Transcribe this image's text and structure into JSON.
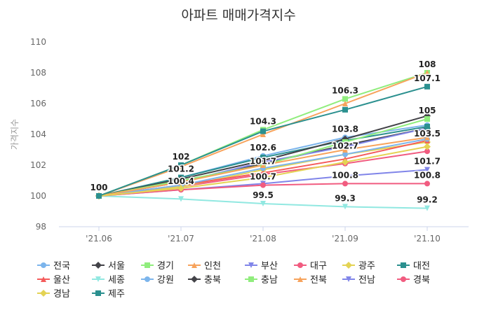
{
  "chart_data": {
    "type": "line",
    "title": "아파트 매매가격지수",
    "xlabel": "",
    "ylabel": "가격지수",
    "x": [
      "'21.06",
      "'21.07",
      "'21.08",
      "'21.09",
      "'21.10"
    ],
    "yticks": [
      "98",
      "100",
      "102",
      "104",
      "106",
      "108",
      "110"
    ],
    "ylim": [
      98,
      110
    ],
    "grid": false,
    "legend_position": "bottom",
    "series": [
      {
        "name": "전국",
        "color": "#7cb5ec",
        "marker": "circle",
        "values": [
          100,
          101.2,
          102.6,
          103.8,
          104.6
        ]
      },
      {
        "name": "서울",
        "color": "#434348",
        "marker": "diamond",
        "values": [
          100,
          100.9,
          102.1,
          103.3,
          104.4
        ]
      },
      {
        "name": "경기",
        "color": "#90ed7d",
        "marker": "square",
        "values": [
          100,
          102,
          104.3,
          106.3,
          108
        ]
      },
      {
        "name": "인천",
        "color": "#f7a35c",
        "marker": "triangle",
        "values": [
          100,
          101.9,
          104,
          106,
          108
        ]
      },
      {
        "name": "부산",
        "color": "#8085e9",
        "marker": "triangle-down",
        "values": [
          100,
          100.9,
          102.2,
          103.2,
          104.4
        ]
      },
      {
        "name": "대구",
        "color": "#f15c80",
        "marker": "circle",
        "values": [
          100,
          100.6,
          101.4,
          102.1,
          102.9
        ]
      },
      {
        "name": "광주",
        "color": "#e4d354",
        "marker": "diamond",
        "values": [
          100,
          100.6,
          101.7,
          102.7,
          103.5
        ]
      },
      {
        "name": "대전",
        "color": "#2b908f",
        "marker": "square",
        "values": [
          100,
          101.2,
          102.5,
          103.6,
          104.5
        ]
      },
      {
        "name": "울산",
        "color": "#f45b5b",
        "marker": "triangle",
        "values": [
          100,
          100.7,
          101.5,
          102.4,
          103.6
        ]
      },
      {
        "name": "세종",
        "color": "#91e8e1",
        "marker": "triangle-down",
        "values": [
          100,
          99.8,
          99.5,
          99.3,
          99.2
        ]
      },
      {
        "name": "강원",
        "color": "#7cb5ec",
        "marker": "circle",
        "values": [
          100,
          100.7,
          101.8,
          102.7,
          103.7
        ]
      },
      {
        "name": "충북",
        "color": "#434348",
        "marker": "diamond",
        "values": [
          100,
          101.1,
          102.3,
          103.7,
          105.2
        ]
      },
      {
        "name": "충남",
        "color": "#90ed7d",
        "marker": "square",
        "values": [
          100,
          101,
          102,
          103.5,
          105
        ]
      },
      {
        "name": "전북",
        "color": "#f7a35c",
        "marker": "triangle",
        "values": [
          100,
          100.9,
          102,
          103,
          103.8
        ]
      },
      {
        "name": "전남",
        "color": "#8085e9",
        "marker": "triangle-down",
        "values": [
          100,
          100.4,
          100.8,
          101.3,
          101.7
        ]
      },
      {
        "name": "경북",
        "color": "#f15c80",
        "marker": "circle",
        "values": [
          100,
          100.4,
          100.7,
          100.8,
          100.8
        ]
      },
      {
        "name": "경남",
        "color": "#e4d354",
        "marker": "diamond",
        "values": [
          100,
          100.5,
          101.2,
          102.2,
          103.2
        ]
      },
      {
        "name": "제주",
        "color": "#2b908f",
        "marker": "square",
        "values": [
          100,
          102,
          104.2,
          105.6,
          107.1
        ]
      }
    ],
    "annotations": [
      {
        "text": "100",
        "x": "'21.06",
        "y": 100
      },
      {
        "text": "102",
        "x": "'21.07",
        "y": 102
      },
      {
        "text": "101.2",
        "x": "'21.07",
        "y": 101.2
      },
      {
        "text": "100.4",
        "x": "'21.07",
        "y": 100.4
      },
      {
        "text": "104.3",
        "x": "'21.08",
        "y": 104.3
      },
      {
        "text": "102.6",
        "x": "'21.08",
        "y": 102.6
      },
      {
        "text": "101.7",
        "x": "'21.08",
        "y": 101.7
      },
      {
        "text": "100.7",
        "x": "'21.08",
        "y": 100.7
      },
      {
        "text": "99.5",
        "x": "'21.08",
        "y": 99.5
      },
      {
        "text": "106.3",
        "x": "'21.09",
        "y": 106.3
      },
      {
        "text": "103.8",
        "x": "'21.09",
        "y": 103.8
      },
      {
        "text": "102.7",
        "x": "'21.09",
        "y": 102.7
      },
      {
        "text": "100.8",
        "x": "'21.09",
        "y": 100.8
      },
      {
        "text": "99.3",
        "x": "'21.09",
        "y": 99.3
      },
      {
        "text": "108",
        "x": "'21.10",
        "y": 108
      },
      {
        "text": "107.1",
        "x": "'21.10",
        "y": 107.1
      },
      {
        "text": "105",
        "x": "'21.10",
        "y": 105
      },
      {
        "text": "103.5",
        "x": "'21.10",
        "y": 103.5
      },
      {
        "text": "101.7",
        "x": "'21.10",
        "y": 101.7
      },
      {
        "text": "100.8",
        "x": "'21.10",
        "y": 100.8
      },
      {
        "text": "99.2",
        "x": "'21.10",
        "y": 99.2
      }
    ]
  }
}
